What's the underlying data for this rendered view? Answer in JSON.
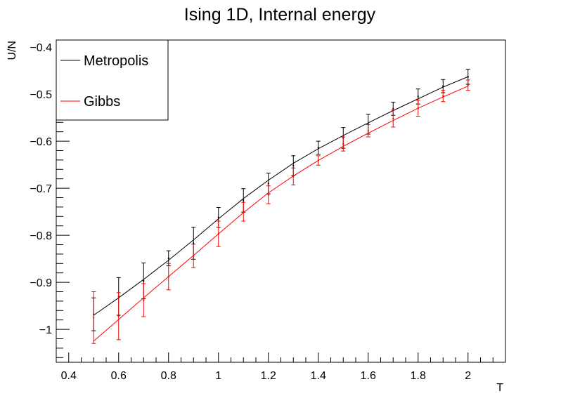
{
  "chart_data": {
    "type": "line",
    "title": "Ising 1D, Internal energy",
    "xlabel": "T",
    "ylabel": "U/N",
    "xlim": [
      0.35,
      2.15
    ],
    "ylim": [
      -1.07,
      -0.385
    ],
    "x_ticks": [
      {
        "value": 0.4,
        "label": "0.4"
      },
      {
        "value": 0.6,
        "label": "0.6"
      },
      {
        "value": 0.8,
        "label": "0.8"
      },
      {
        "value": 1.0,
        "label": "1"
      },
      {
        "value": 1.2,
        "label": "1.2"
      },
      {
        "value": 1.4,
        "label": "1.4"
      },
      {
        "value": 1.6,
        "label": "1.6"
      },
      {
        "value": 1.8,
        "label": "1.8"
      },
      {
        "value": 2.0,
        "label": "2"
      }
    ],
    "y_ticks": [
      {
        "value": -0.4,
        "label": "−0.4"
      },
      {
        "value": -0.5,
        "label": "−0.5"
      },
      {
        "value": -0.6,
        "label": "−0.6"
      },
      {
        "value": -0.7,
        "label": "−0.7"
      },
      {
        "value": -0.8,
        "label": "−0.8"
      },
      {
        "value": -0.9,
        "label": "−0.9"
      },
      {
        "value": -1.0,
        "label": "−1"
      }
    ],
    "grid": false,
    "legend_position": "top-left",
    "x": [
      0.5,
      0.6,
      0.7,
      0.8,
      0.9,
      1.0,
      1.1,
      1.2,
      1.3,
      1.4,
      1.5,
      1.6,
      1.7,
      1.8,
      1.9,
      2.0
    ],
    "series": [
      {
        "name": "Metropolis",
        "color": "#000000",
        "line_values": [
          -0.97,
          -0.933,
          -0.894,
          -0.853,
          -0.81,
          -0.765,
          -0.722,
          -0.683,
          -0.647,
          -0.616,
          -0.588,
          -0.561,
          -0.535,
          -0.51,
          -0.485,
          -0.463
        ],
        "points": [
          -0.968,
          -0.93,
          -0.897,
          -0.849,
          -0.817,
          -0.762,
          -0.726,
          -0.69,
          -0.652,
          -0.614,
          -0.593,
          -0.564,
          -0.531,
          -0.505,
          -0.483,
          -0.463
        ],
        "errors": [
          0.035,
          0.04,
          0.038,
          0.016,
          0.034,
          0.021,
          0.025,
          0.022,
          0.021,
          0.014,
          0.022,
          0.021,
          0.014,
          0.016,
          0.014,
          0.016
        ]
      },
      {
        "name": "Gibbs",
        "color": "#ff0000",
        "line_values": [
          -1.025,
          -0.979,
          -0.933,
          -0.888,
          -0.843,
          -0.797,
          -0.752,
          -0.71,
          -0.674,
          -0.641,
          -0.611,
          -0.583,
          -0.556,
          -0.53,
          -0.506,
          -0.483
        ],
        "points": [
          -0.975,
          -0.972,
          -0.938,
          -0.888,
          -0.844,
          -0.797,
          -0.75,
          -0.714,
          -0.675,
          -0.641,
          -0.606,
          -0.578,
          -0.552,
          -0.53,
          -0.504,
          -0.481
        ],
        "errors": [
          0.055,
          0.05,
          0.035,
          0.028,
          0.025,
          0.027,
          0.02,
          0.019,
          0.018,
          0.01,
          0.015,
          0.013,
          0.018,
          0.017,
          0.012,
          0.011
        ]
      }
    ]
  }
}
